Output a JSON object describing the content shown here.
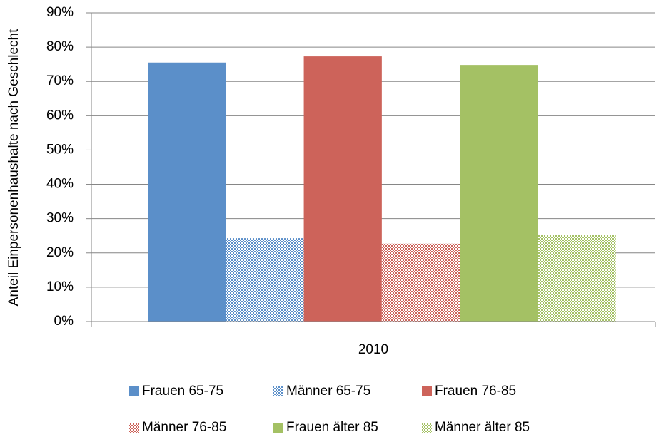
{
  "chart_data": {
    "type": "bar",
    "y_label": "Anteil Einpersonenhaushalte nach Geschlecht",
    "categories": [
      "2010"
    ],
    "series": [
      {
        "name": "Frauen 65-75",
        "color": "#5b8fc9",
        "pattern": "solid",
        "values": [
          75.5
        ]
      },
      {
        "name": "Männer 65-75",
        "color": "#5b8fc9",
        "pattern": "checkered",
        "values": [
          24.3
        ]
      },
      {
        "name": "Frauen 76-85",
        "color": "#cd635a",
        "pattern": "solid",
        "values": [
          77.3
        ]
      },
      {
        "name": "Männer 76-85",
        "color": "#cd635a",
        "pattern": "checkered",
        "values": [
          22.7
        ]
      },
      {
        "name": "Frauen älter 85",
        "color": "#a4c164",
        "pattern": "solid",
        "values": [
          74.8
        ]
      },
      {
        "name": "Männer älter 85",
        "color": "#a4c164",
        "pattern": "checkered",
        "values": [
          25.2
        ]
      }
    ],
    "ylim": [
      0,
      90
    ],
    "yticks": [
      {
        "value": 0,
        "label": "0%"
      },
      {
        "value": 10,
        "label": "10%"
      },
      {
        "value": 20,
        "label": "20%"
      },
      {
        "value": 30,
        "label": "30%"
      },
      {
        "value": 40,
        "label": "40%"
      },
      {
        "value": 50,
        "label": "50%"
      },
      {
        "value": 60,
        "label": "60%"
      },
      {
        "value": 70,
        "label": "70%"
      },
      {
        "value": 80,
        "label": "80%"
      },
      {
        "value": 90,
        "label": "90%"
      }
    ],
    "grid": true,
    "legend": "bottom"
  }
}
